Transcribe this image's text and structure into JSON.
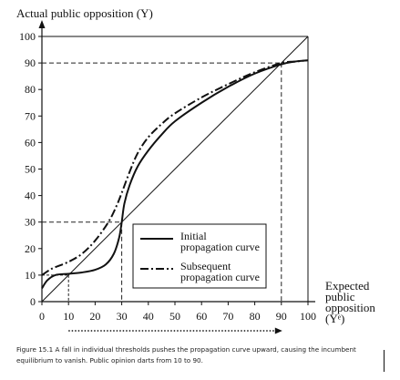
{
  "chart_data": {
    "type": "line",
    "title": "",
    "ylabel": "Actual public opposition (Y)",
    "xlabel_lines": [
      "Expected",
      "public",
      "opposition",
      "(Yᵉ)"
    ],
    "xlim": [
      0,
      100
    ],
    "ylim": [
      0,
      100
    ],
    "x_ticks": [
      0,
      10,
      20,
      30,
      40,
      50,
      60,
      70,
      80,
      90,
      100
    ],
    "y_ticks": [
      0,
      10,
      20,
      30,
      40,
      50,
      60,
      70,
      80,
      90,
      100
    ],
    "grid": false,
    "legend_position": "center-right",
    "series": [
      {
        "name": "Initial propagation curve",
        "style": "solid",
        "x": [
          0,
          2,
          5,
          10,
          15,
          20,
          24,
          27,
          29,
          30,
          31,
          33,
          36,
          40,
          45,
          50,
          60,
          70,
          80,
          90,
          95,
          100
        ],
        "y": [
          5,
          8,
          10,
          10.5,
          11,
          12,
          14,
          18,
          24,
          30,
          37,
          44,
          51,
          57,
          63,
          68,
          75,
          81,
          86,
          89.5,
          90.5,
          91
        ]
      },
      {
        "name": "Subsequent propagation curve",
        "style": "dashdot",
        "x": [
          0,
          3,
          5,
          10,
          15,
          20,
          25,
          28,
          30,
          33,
          36,
          40,
          45,
          50,
          60,
          70,
          80,
          90,
          95,
          100
        ],
        "y": [
          10,
          12,
          13,
          15,
          18,
          23,
          30,
          36,
          41,
          49,
          56,
          62,
          67,
          71,
          77,
          82,
          86.5,
          90,
          90.5,
          91
        ]
      },
      {
        "name": "",
        "style": "solid-thin",
        "x": [
          0,
          100
        ],
        "y": [
          0,
          100
        ]
      }
    ],
    "legend_entries": [
      {
        "line1": "Initial",
        "line2": "propagation curve",
        "style": "solid"
      },
      {
        "line1": "Subsequent",
        "line2": "propagation curve",
        "style": "dashdot"
      }
    ],
    "reference_lines": [
      {
        "x": 30,
        "y": 30
      },
      {
        "x": 90,
        "y": 90
      }
    ],
    "small_marker_x": [
      10,
      10
    ],
    "arrow_from": 10,
    "arrow_to": 90
  },
  "caption": "Figure 15.1 A fall in individual thresholds pushes the propagation curve upward, causing the incumbent equilibrium to vanish. Public opinion darts from 10 to 90."
}
